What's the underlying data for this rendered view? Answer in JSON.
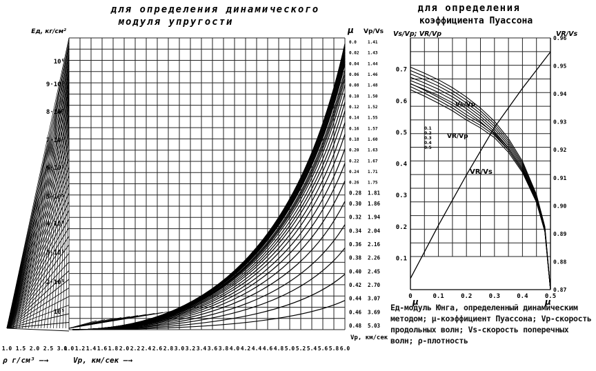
{
  "left_title": [
    "для определения динамического",
    "модуля упругости"
  ],
  "right_title": [
    "для определения",
    "коэффициента Пуассона"
  ],
  "caption": "Eд-модуль Юнга, определенный динамическим методом; μ-коэффициент Пуассона; Vp-скорость продольных волн; Vs-скорость поперечных волн; ρ-плотность",
  "chart_data": [
    {
      "type": "line",
      "title": "для определения динамического модуля упругости",
      "x_axis_bottom": {
        "label": "Vp, км/сек",
        "ticks": [
          "1.0",
          "1.2",
          "1.4",
          "1.6",
          "1.8",
          "2.0",
          "2.2",
          "2.4",
          "2.6",
          "2.8",
          "3.0",
          "3.2",
          "3.4",
          "3.6",
          "3.8",
          "4.0",
          "4.2",
          "4.4",
          "4.6",
          "4.8",
          "5.0",
          "5.2",
          "5.4",
          "5.6",
          "5.8",
          "6.0"
        ],
        "range": [
          1.0,
          6.0
        ]
      },
      "density_axis": {
        "label": "ρ г/см³",
        "ticks": [
          "1.0",
          "1.5",
          "2.0",
          "2.5",
          "3.0"
        ]
      },
      "left_axis": {
        "label": "Eд, кг/см²",
        "ticks": [
          "10⁵",
          "2·10⁵",
          "3·10⁵",
          "4·10⁵",
          "5·10⁵",
          "6·10⁵",
          "7·10⁵",
          "8·10⁵",
          "9·10⁵",
          "10⁶"
        ]
      },
      "right_axis_mu": {
        "label": "μ",
        "ticks": [
          "0.0",
          "0.02",
          "0.04",
          "0.06",
          "0.08",
          "0.10",
          "0.12",
          "0.14",
          "0.16",
          "0.18",
          "0.20",
          "0.22",
          "0.24",
          "0.26",
          "0.28",
          "0.30",
          "0.32",
          "0.34",
          "0.36",
          "0.38",
          "0.40",
          "0.42",
          "0.44",
          "0.46",
          "0.48"
        ]
      },
      "right_axis_ratio": {
        "label": "Vp/Vs",
        "ticks": [
          "1.41",
          "1.43",
          "1.44",
          "1.46",
          "1.48",
          "1.50",
          "1.52",
          "1.55",
          "1.57",
          "1.60",
          "1.63",
          "1.67",
          "1.71",
          "1.75",
          "1.81",
          "1.86",
          "1.94",
          "2.04",
          "2.16",
          "2.26",
          "2.45",
          "2.70",
          "3.07",
          "3.69",
          "5.03"
        ]
      },
      "right_axis_end_label": "Vp, км/сек",
      "series": [
        {
          "mu": 0.0,
          "E_at_Vp6": 0.98
        },
        {
          "mu": 0.02,
          "E_at_Vp6": 0.97
        },
        {
          "mu": 0.04,
          "E_at_Vp6": 0.96
        },
        {
          "mu": 0.06,
          "E_at_Vp6": 0.95
        },
        {
          "mu": 0.08,
          "E_at_Vp6": 0.94
        },
        {
          "mu": 0.1,
          "E_at_Vp6": 0.93
        },
        {
          "mu": 0.12,
          "E_at_Vp6": 0.92
        },
        {
          "mu": 0.14,
          "E_at_Vp6": 0.91
        },
        {
          "mu": 0.16,
          "E_at_Vp6": 0.89
        },
        {
          "mu": 0.18,
          "E_at_Vp6": 0.875
        },
        {
          "mu": 0.2,
          "E_at_Vp6": 0.86
        },
        {
          "mu": 0.22,
          "E_at_Vp6": 0.84
        },
        {
          "mu": 0.24,
          "E_at_Vp6": 0.81
        },
        {
          "mu": 0.26,
          "E_at_Vp6": 0.78
        },
        {
          "mu": 0.28,
          "E_at_Vp6": 0.75
        },
        {
          "mu": 0.3,
          "E_at_Vp6": 0.71
        },
        {
          "mu": 0.32,
          "E_at_Vp6": 0.67
        },
        {
          "mu": 0.34,
          "E_at_Vp6": 0.62
        },
        {
          "mu": 0.36,
          "E_at_Vp6": 0.57
        },
        {
          "mu": 0.38,
          "E_at_Vp6": 0.51
        },
        {
          "mu": 0.4,
          "E_at_Vp6": 0.44
        },
        {
          "mu": 0.42,
          "E_at_Vp6": 0.36
        },
        {
          "mu": 0.44,
          "E_at_Vp6": 0.28
        },
        {
          "mu": 0.46,
          "E_at_Vp6": 0.19
        },
        {
          "mu": 0.48,
          "E_at_Vp6": 0.1
        }
      ]
    },
    {
      "type": "line",
      "title": "для определения коэффициента Пуассона",
      "xlabel": "μ",
      "xlim": [
        0,
        0.5
      ],
      "x_ticks": [
        "0",
        "0.1",
        "0.2",
        "0.3",
        "0.4",
        "0.5"
      ],
      "left_axis": {
        "label": "Vs/Vp; VR/Vp",
        "ticks": [
          "0.1",
          "0.2",
          "0.3",
          "0.4",
          "0.5",
          "0.6",
          "0.7"
        ],
        "range": [
          0,
          0.8
        ]
      },
      "right_axis": {
        "label": "VR/Vs",
        "ticks": [
          "0.87",
          "0.88",
          "0.89",
          "0.90",
          "0.91",
          "0.92",
          "0.93",
          "0.94",
          "0.95",
          "0.96"
        ],
        "range": [
          0.87,
          0.96
        ]
      },
      "curve_labels": [
        "Vs/Vp",
        "VR/Vp",
        "VR/Vs"
      ],
      "small_labels": [
        "0.1",
        "0.2",
        "0.3",
        "0.4",
        "0.5"
      ],
      "series": [
        {
          "name": "Vs/Vp",
          "x": [
            0,
            0.05,
            0.1,
            0.15,
            0.2,
            0.25,
            0.3,
            0.35,
            0.4,
            0.45,
            0.48,
            0.5
          ],
          "y": [
            0.707,
            0.688,
            0.667,
            0.642,
            0.612,
            0.577,
            0.535,
            0.48,
            0.408,
            0.302,
            0.2,
            0.0
          ]
        },
        {
          "name": "VR/Vp",
          "x": [
            0,
            0.05,
            0.1,
            0.15,
            0.2,
            0.25,
            0.3,
            0.35,
            0.4,
            0.45,
            0.48,
            0.5
          ],
          "y": [
            0.655,
            0.634,
            0.611,
            0.586,
            0.556,
            0.53,
            0.498,
            0.45,
            0.384,
            0.286,
            0.19,
            0.0
          ]
        },
        {
          "name": "VR/Vs",
          "x": [
            0,
            0.1,
            0.2,
            0.3,
            0.4,
            0.5
          ],
          "y": [
            0.874,
            0.893,
            0.911,
            0.928,
            0.942,
            0.955
          ]
        }
      ]
    }
  ]
}
